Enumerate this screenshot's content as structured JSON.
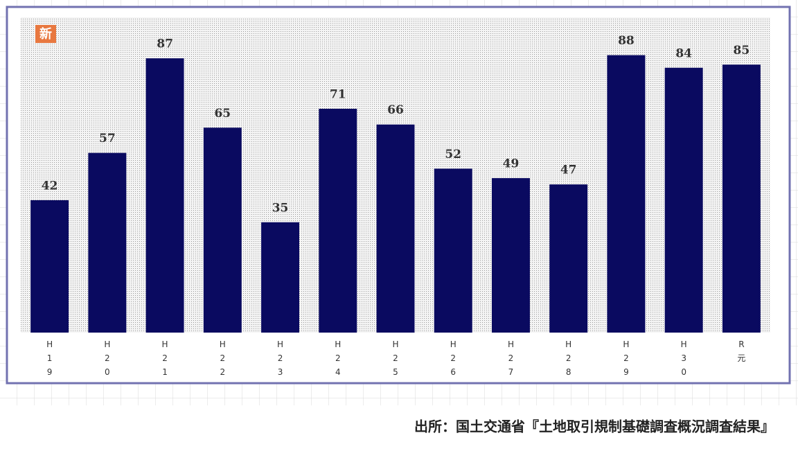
{
  "chart_data": {
    "type": "bar",
    "categories": [
      "H19",
      "H20",
      "H21",
      "H22",
      "H23",
      "H24",
      "H25",
      "H26",
      "H27",
      "H28",
      "H29",
      "H30",
      "R元"
    ],
    "values": [
      42,
      57,
      87,
      65,
      35,
      71,
      66,
      52,
      49,
      47,
      88,
      84,
      85
    ],
    "color": "#0a0a60",
    "ylim": [
      0,
      100
    ]
  },
  "badge": "新",
  "source": "出所：国土交通省『土地取引規制基礎調査概況調査結果』"
}
